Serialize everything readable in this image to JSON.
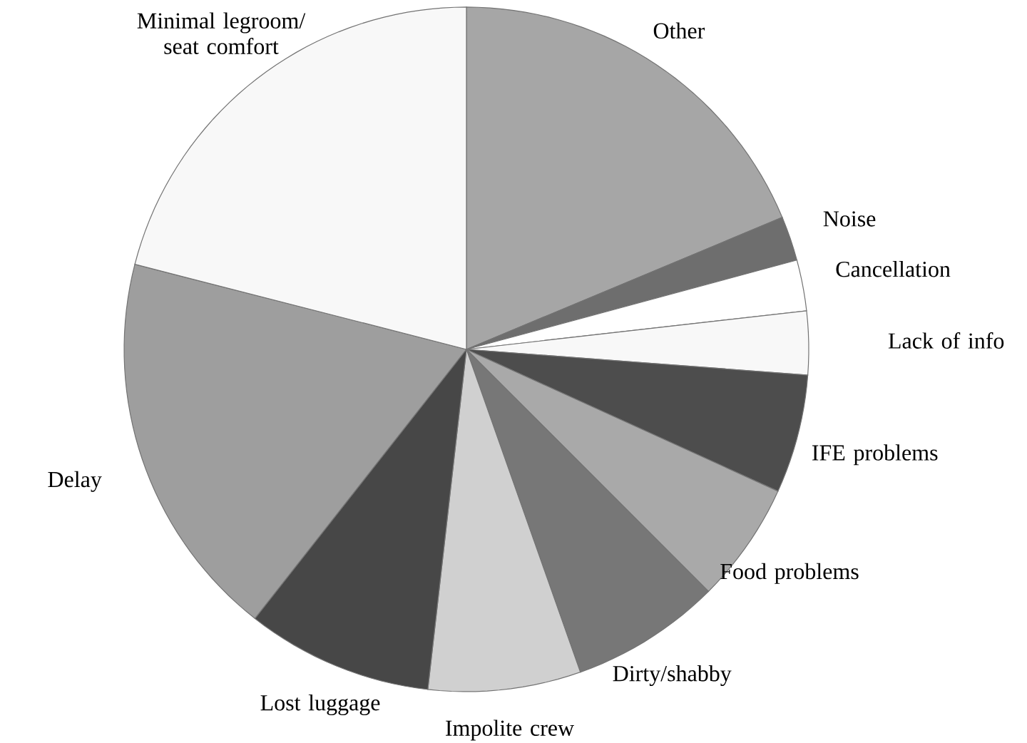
{
  "chart_data": {
    "type": "pie",
    "categories": [
      "Other",
      "Noise",
      "Cancellation",
      "Lack of info",
      "IFE problems",
      "Food problems",
      "Dirty/shabby",
      "Impolite crew",
      "Lost luggage",
      "Delay",
      "Minimal legroom/ seat comfort"
    ],
    "values": [
      18.7,
      2.1,
      2.4,
      3.0,
      5.6,
      5.7,
      7.1,
      7.2,
      8.8,
      18.4,
      21.0
    ],
    "colors": [
      "#a6a6a6",
      "#6e6e6e",
      "#ffffff",
      "#f8f8f8",
      "#4d4d4d",
      "#a9a9a9",
      "#777777",
      "#d0d0d0",
      "#474747",
      "#9e9e9e",
      "#f8f8f8"
    ]
  }
}
